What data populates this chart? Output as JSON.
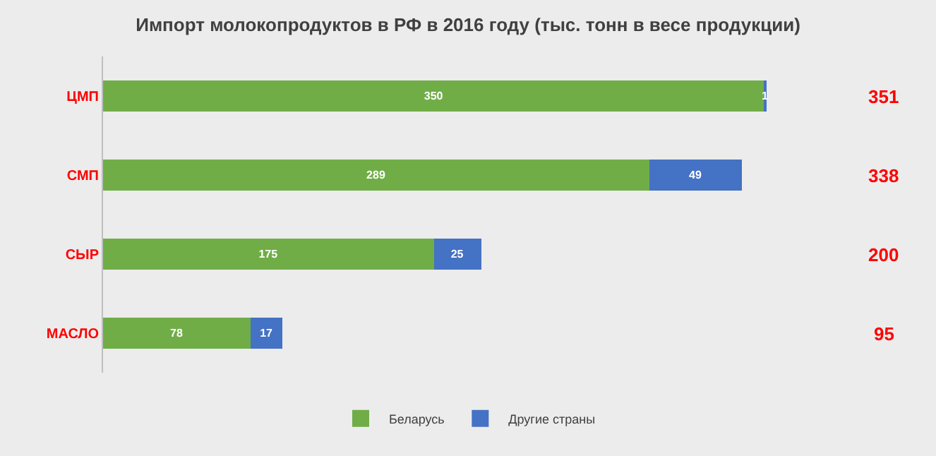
{
  "chart_data": {
    "type": "bar",
    "orientation": "horizontal",
    "stacked": true,
    "title": "Импорт молокопродуктов в РФ в 2016 году (тыс. тонн в весе продукции)",
    "categories": [
      "ЦМП",
      "СМП",
      "СЫР",
      "МАСЛО"
    ],
    "series": [
      {
        "name": "Беларусь",
        "color": "#70ad47",
        "values": [
          350,
          289,
          175,
          78
        ]
      },
      {
        "name": "Другие страны",
        "color": "#4472c4",
        "values": [
          1,
          49,
          25,
          17
        ]
      }
    ],
    "data_labels": true,
    "annotations": [
      "351",
      "338",
      "200",
      "95"
    ],
    "legend": "bottom",
    "grid": false
  }
}
